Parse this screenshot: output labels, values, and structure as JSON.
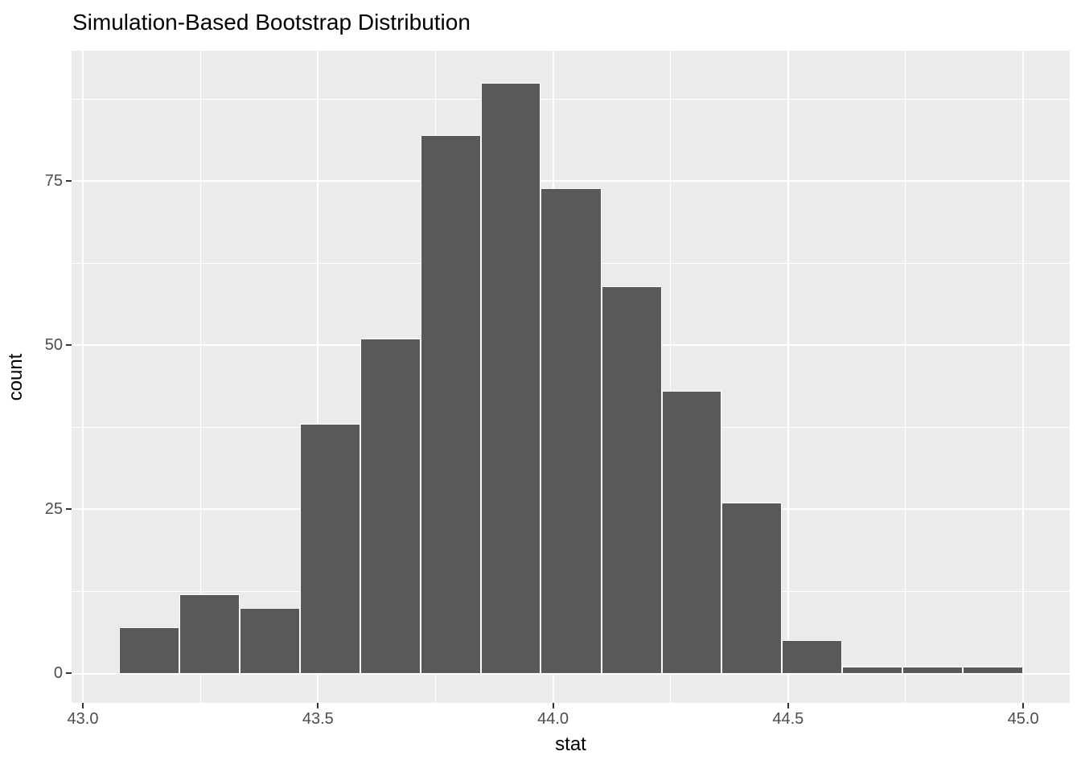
{
  "chart_data": {
    "type": "bar",
    "subtype": "histogram",
    "title": "Simulation-Based Bootstrap Distribution",
    "xlabel": "stat",
    "ylabel": "count",
    "x_range": [
      42.976,
      45.099
    ],
    "y_range": [
      -4.5,
      94.9
    ],
    "grid": "on",
    "legend": "none",
    "x_ticks": [
      {
        "value": 43.0,
        "label": "43.0"
      },
      {
        "value": 43.5,
        "label": "43.5"
      },
      {
        "value": 44.0,
        "label": "44.0"
      },
      {
        "value": 44.5,
        "label": "44.5"
      },
      {
        "value": 45.0,
        "label": "45.0"
      }
    ],
    "x_minor_ticks": [
      43.25,
      43.75,
      44.25,
      44.75
    ],
    "y_ticks": [
      {
        "value": 0,
        "label": "0"
      },
      {
        "value": 25,
        "label": "25"
      },
      {
        "value": 50,
        "label": "50"
      },
      {
        "value": 75,
        "label": "75"
      }
    ],
    "y_minor_ticks": [
      12.5,
      37.5,
      62.5,
      87.5
    ],
    "binwidth": 0.128,
    "bins": [
      {
        "x0": 43.077,
        "x1": 43.205,
        "count": 7
      },
      {
        "x0": 43.205,
        "x1": 43.333,
        "count": 12
      },
      {
        "x0": 43.333,
        "x1": 43.462,
        "count": 10
      },
      {
        "x0": 43.462,
        "x1": 43.59,
        "count": 38
      },
      {
        "x0": 43.59,
        "x1": 43.718,
        "count": 51
      },
      {
        "x0": 43.718,
        "x1": 43.846,
        "count": 82
      },
      {
        "x0": 43.846,
        "x1": 43.974,
        "count": 90
      },
      {
        "x0": 43.974,
        "x1": 44.103,
        "count": 74
      },
      {
        "x0": 44.103,
        "x1": 44.231,
        "count": 59
      },
      {
        "x0": 44.231,
        "x1": 44.359,
        "count": 43
      },
      {
        "x0": 44.359,
        "x1": 44.487,
        "count": 26
      },
      {
        "x0": 44.487,
        "x1": 44.615,
        "count": 5
      },
      {
        "x0": 44.615,
        "x1": 44.744,
        "count": 1
      },
      {
        "x0": 44.744,
        "x1": 44.872,
        "count": 1
      },
      {
        "x0": 44.872,
        "x1": 45.0,
        "count": 1
      }
    ],
    "colors": {
      "bar_fill": "#595959",
      "bar_border": "#FFFFFF",
      "panel_bg": "#EBEBEB",
      "gridline": "#FFFFFF",
      "tick_mark": "#333333",
      "tick_label": "#4D4D4D",
      "title_text": "#000000",
      "page_bg": "#FFFFFF"
    }
  }
}
